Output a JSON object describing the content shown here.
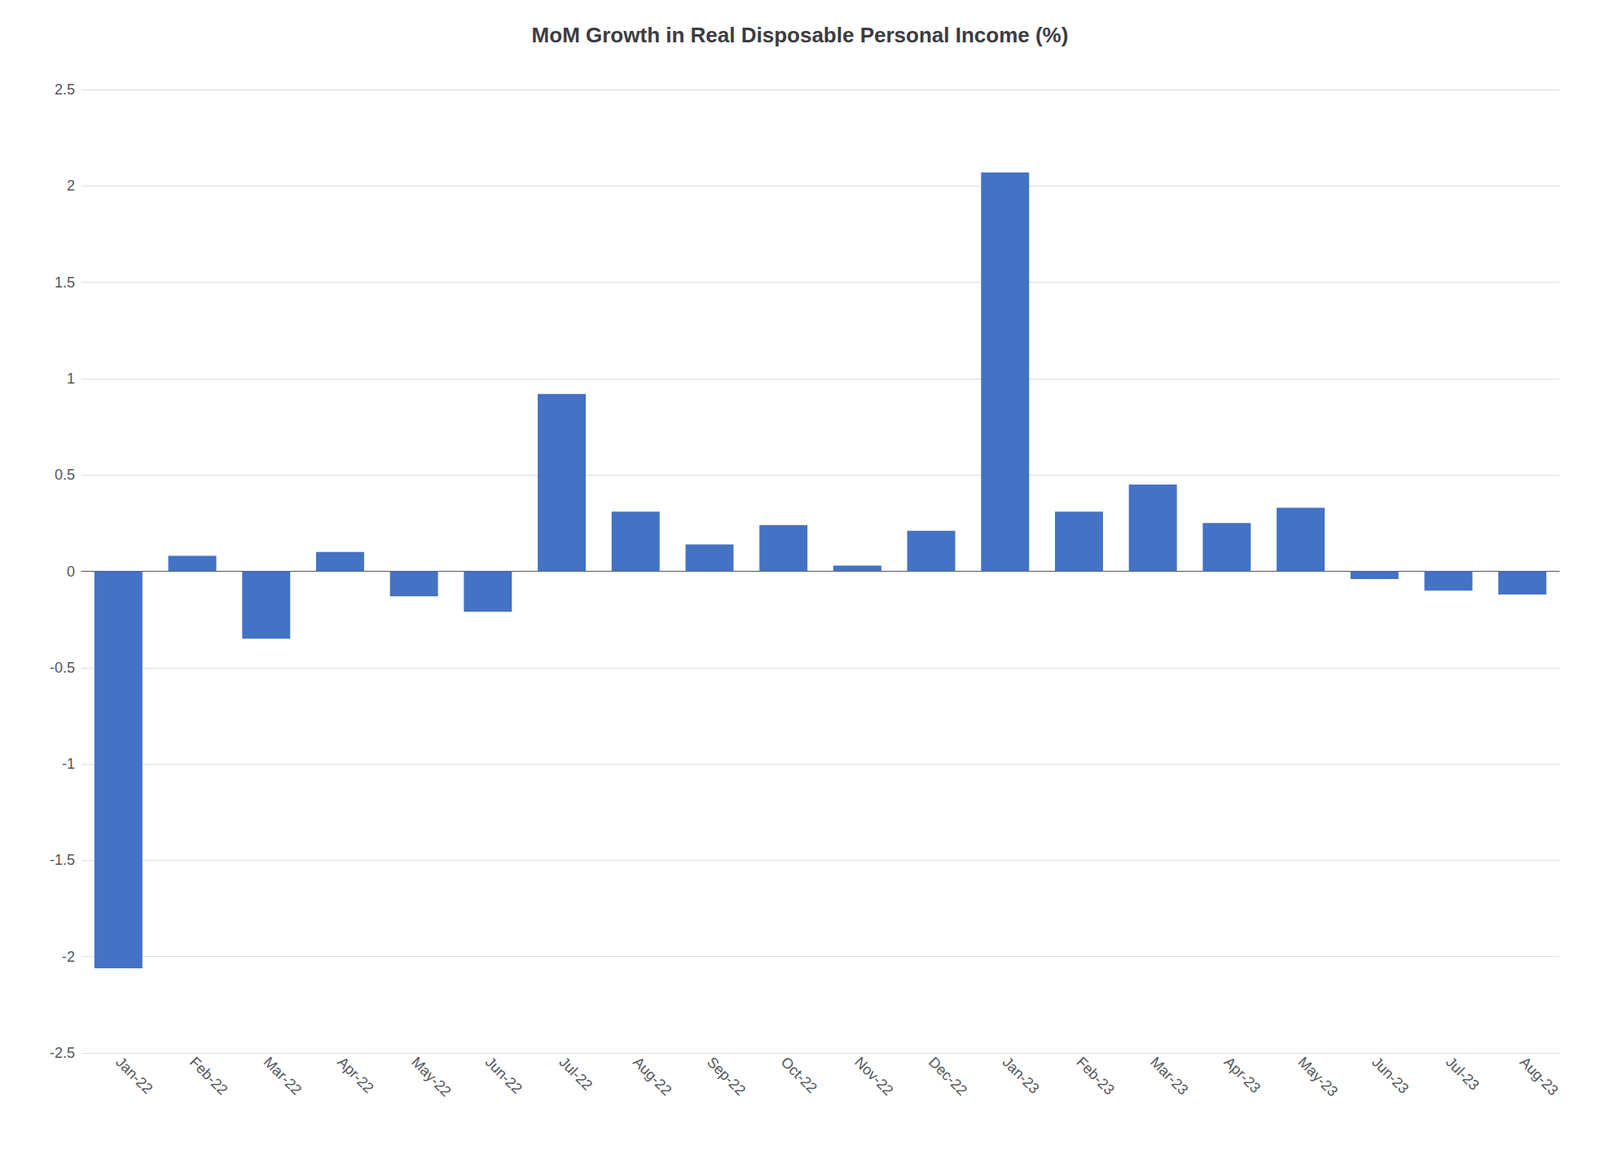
{
  "chart_data": {
    "type": "bar",
    "title": "MoM Growth in Real Disposable Personal Income (%)",
    "categories": [
      "Jan-22",
      "Feb-22",
      "Mar-22",
      "Apr-22",
      "May-22",
      "Jun-22",
      "Jul-22",
      "Aug-22",
      "Sep-22",
      "Oct-22",
      "Nov-22",
      "Dec-22",
      "Jan-23",
      "Feb-23",
      "Mar-23",
      "Apr-23",
      "May-23",
      "Jun-23",
      "Jul-23",
      "Aug-23"
    ],
    "values": [
      -2.06,
      0.08,
      -0.35,
      0.1,
      -0.13,
      -0.21,
      0.92,
      0.31,
      0.14,
      0.24,
      0.03,
      0.21,
      2.07,
      0.31,
      0.45,
      0.25,
      0.33,
      -0.04,
      -0.1,
      -0.12
    ],
    "color": "#4472C4",
    "ylim": [
      -2.5,
      2.5
    ],
    "yticks": [
      -2.5,
      -2,
      -1.5,
      -1,
      -0.5,
      0,
      0.5,
      1,
      1.5,
      2,
      2.5
    ],
    "grid": true
  }
}
